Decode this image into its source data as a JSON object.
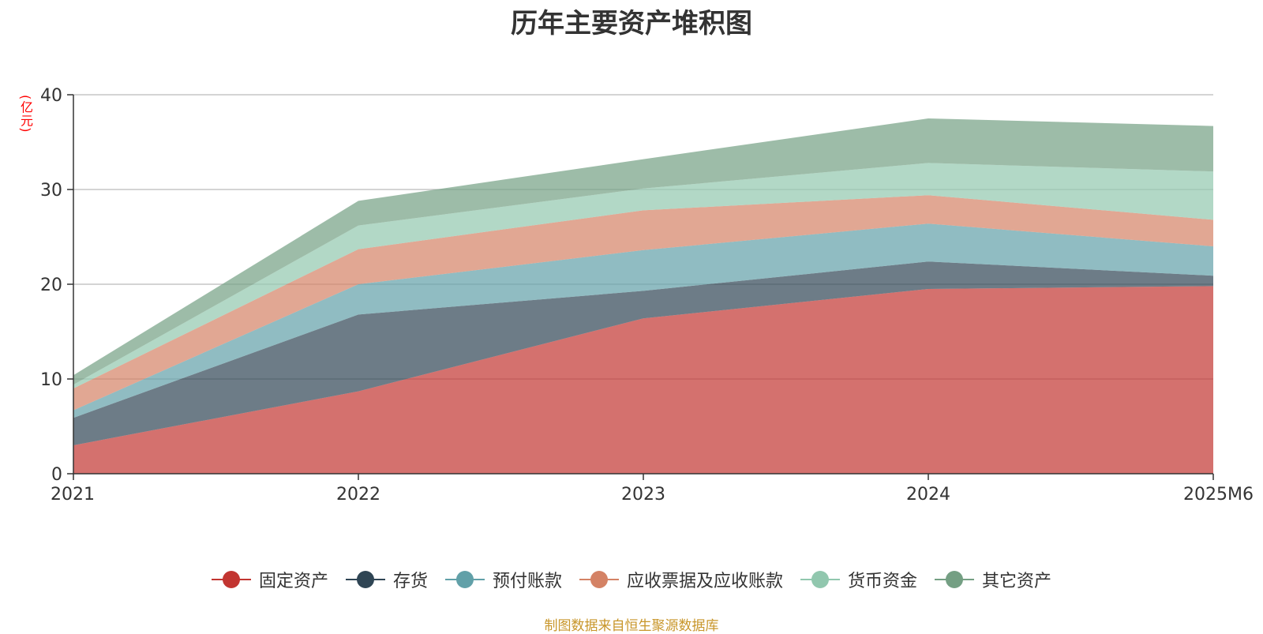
{
  "chart_data": {
    "type": "area",
    "title": "历年主要资产堆积图",
    "ylabel": "(亿元)",
    "categories": [
      "2021",
      "2022",
      "2023",
      "2024",
      "2025M6"
    ],
    "ylim": [
      0,
      40
    ],
    "yticks": [
      0,
      10,
      20,
      30,
      40
    ],
    "stacked": true,
    "grid": true,
    "legend_position": "bottom",
    "series": [
      {
        "name": "固定资产",
        "color": "#c23531",
        "values": [
          3.0,
          8.7,
          16.4,
          19.5,
          19.8
        ]
      },
      {
        "name": "存货",
        "color": "#2f4554",
        "values": [
          2.9,
          8.1,
          2.9,
          2.9,
          1.1
        ]
      },
      {
        "name": "预付账款",
        "color": "#61a0a8",
        "values": [
          0.8,
          3.2,
          4.3,
          4.0,
          3.1
        ]
      },
      {
        "name": "应收票据及应收账款",
        "color": "#d48265",
        "values": [
          2.3,
          3.7,
          4.2,
          3.0,
          2.8
        ]
      },
      {
        "name": "货币资金",
        "color": "#91c7ae",
        "values": [
          0.4,
          2.5,
          2.3,
          3.4,
          5.1
        ]
      },
      {
        "name": "其它资产",
        "color": "#749f83",
        "values": [
          1.0,
          2.6,
          3.1,
          4.7,
          4.8
        ]
      }
    ]
  },
  "source": "制图数据来自恒生聚源数据库",
  "colors": {
    "unit_label": "#ff0000",
    "source_text": "#c8962a",
    "axis": "#333333",
    "grid": "#bbbbbb"
  }
}
